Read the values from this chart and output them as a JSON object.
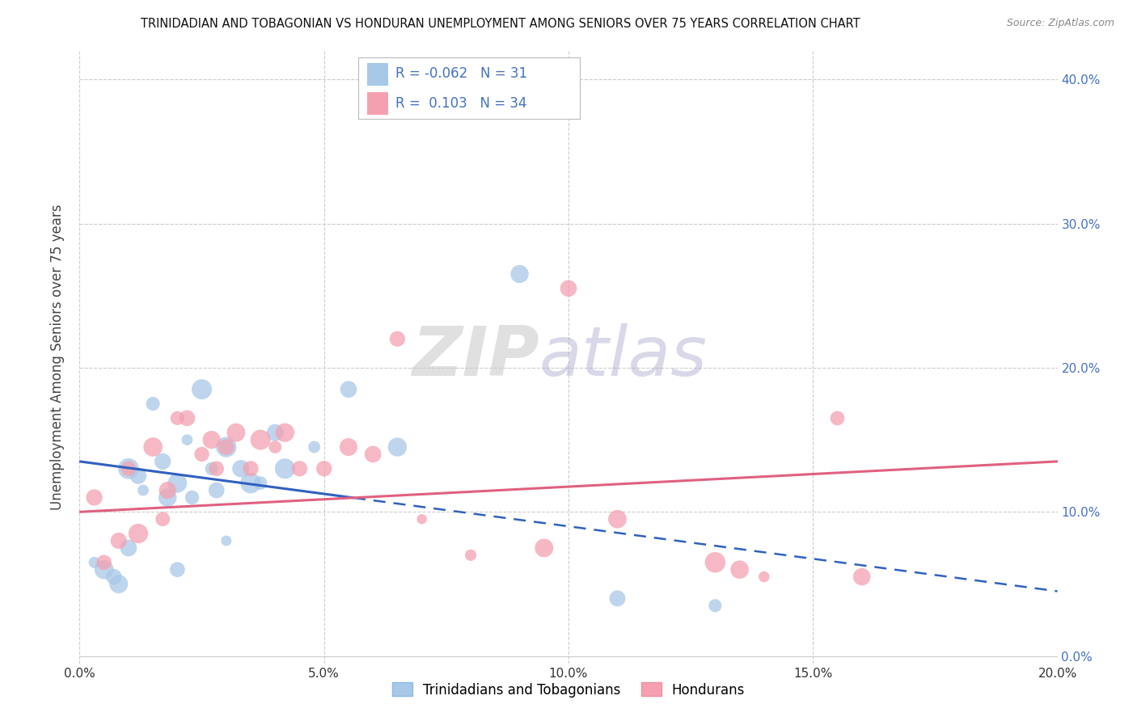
{
  "title": "TRINIDADIAN AND TOBAGONIAN VS HONDURAN UNEMPLOYMENT AMONG SENIORS OVER 75 YEARS CORRELATION CHART",
  "source": "Source: ZipAtlas.com",
  "ylabel": "Unemployment Among Seniors over 75 years",
  "xlim": [
    0.0,
    0.2
  ],
  "ylim": [
    -0.005,
    0.42
  ],
  "xticks": [
    0.0,
    0.05,
    0.1,
    0.15,
    0.2
  ],
  "yticks": [
    0.0,
    0.1,
    0.2,
    0.3,
    0.4
  ],
  "legend_labels": [
    "Trinidadians and Tobagonians",
    "Hondurans"
  ],
  "R_blue": -0.062,
  "N_blue": 31,
  "R_pink": 0.103,
  "N_pink": 34,
  "blue_color": "#A8C8E8",
  "pink_color": "#F4A0B0",
  "blue_line_color": "#3060C0",
  "pink_line_color": "#E06080",
  "watermark_zip": "ZIP",
  "watermark_atlas": "atlas",
  "background_color": "#FFFFFF",
  "grid_h_color": "#CCCCCC",
  "grid_v_color": "#CCCCCC",
  "blue_scatter_x": [
    0.003,
    0.005,
    0.007,
    0.008,
    0.01,
    0.01,
    0.012,
    0.013,
    0.015,
    0.017,
    0.018,
    0.02,
    0.02,
    0.022,
    0.023,
    0.025,
    0.027,
    0.028,
    0.03,
    0.03,
    0.033,
    0.035,
    0.037,
    0.04,
    0.042,
    0.048,
    0.055,
    0.065,
    0.09,
    0.11,
    0.13
  ],
  "blue_scatter_y": [
    0.065,
    0.06,
    0.055,
    0.05,
    0.13,
    0.075,
    0.125,
    0.115,
    0.175,
    0.135,
    0.11,
    0.12,
    0.06,
    0.15,
    0.11,
    0.185,
    0.13,
    0.115,
    0.145,
    0.08,
    0.13,
    0.12,
    0.12,
    0.155,
    0.13,
    0.145,
    0.185,
    0.145,
    0.265,
    0.04,
    0.035
  ],
  "pink_scatter_x": [
    0.003,
    0.005,
    0.008,
    0.01,
    0.012,
    0.015,
    0.017,
    0.018,
    0.02,
    0.022,
    0.025,
    0.027,
    0.028,
    0.03,
    0.032,
    0.035,
    0.037,
    0.04,
    0.042,
    0.045,
    0.05,
    0.055,
    0.06,
    0.065,
    0.07,
    0.08,
    0.095,
    0.1,
    0.11,
    0.13,
    0.135,
    0.14,
    0.155,
    0.16
  ],
  "pink_scatter_y": [
    0.11,
    0.065,
    0.08,
    0.13,
    0.085,
    0.145,
    0.095,
    0.115,
    0.165,
    0.165,
    0.14,
    0.15,
    0.13,
    0.145,
    0.155,
    0.13,
    0.15,
    0.145,
    0.155,
    0.13,
    0.13,
    0.145,
    0.14,
    0.22,
    0.095,
    0.07,
    0.075,
    0.255,
    0.095,
    0.065,
    0.06,
    0.055,
    0.165,
    0.055
  ],
  "blue_line_x0": 0.0,
  "blue_line_y0": 0.135,
  "blue_line_x1": 0.2,
  "blue_line_y1": 0.045,
  "pink_line_x0": 0.0,
  "pink_line_y0": 0.1,
  "pink_line_x1": 0.2,
  "pink_line_y1": 0.135,
  "dash_line_x0": 0.065,
  "dash_line_y0": 0.105,
  "dash_line_x1": 0.2,
  "dash_line_y1": 0.04
}
